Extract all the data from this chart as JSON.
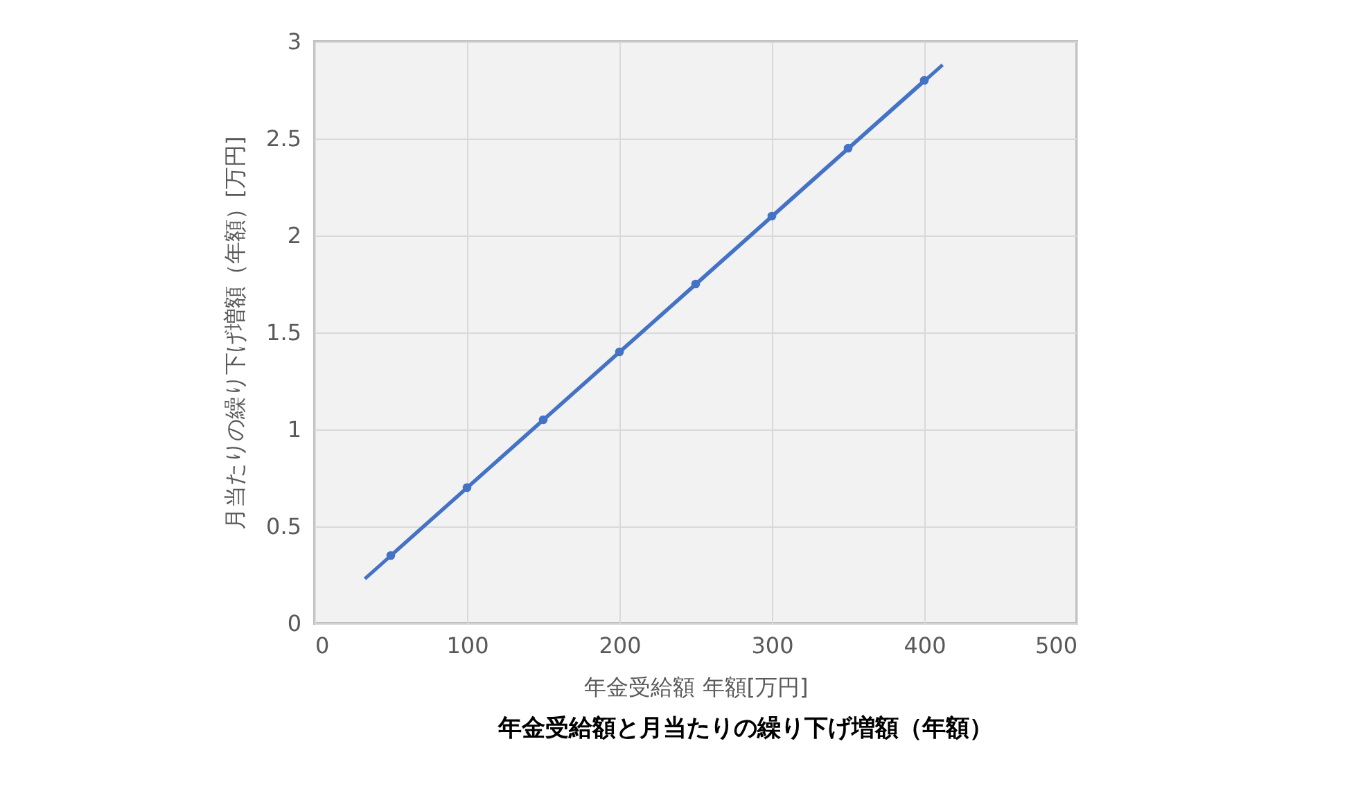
{
  "chart_data": {
    "type": "line",
    "title": "年金受給額と月当たりの繰り下げ増額（年額）",
    "xlabel": "年金受給額  年額[万円]",
    "ylabel": "月当たりの繰り下げ増額（年額）[万円]",
    "series": [
      {
        "marker": "none",
        "color": "#4472c4",
        "x": [
          33,
          412
        ],
        "values": [
          0.23,
          2.88
        ]
      },
      {
        "marker": "circle",
        "color": "#4472c4",
        "x": [
          50,
          100,
          150,
          200,
          250,
          300,
          350,
          400
        ],
        "values": [
          0.35,
          0.7,
          1.05,
          1.4,
          1.75,
          2.1,
          2.45,
          2.8
        ]
      }
    ],
    "xlim": [
      0,
      500
    ],
    "xticks": [
      0,
      100,
      200,
      300,
      400,
      500
    ],
    "ylim": [
      0,
      3
    ],
    "yticks": [
      0,
      0.5,
      1,
      1.5,
      2,
      2.5,
      3
    ],
    "grid": true
  }
}
